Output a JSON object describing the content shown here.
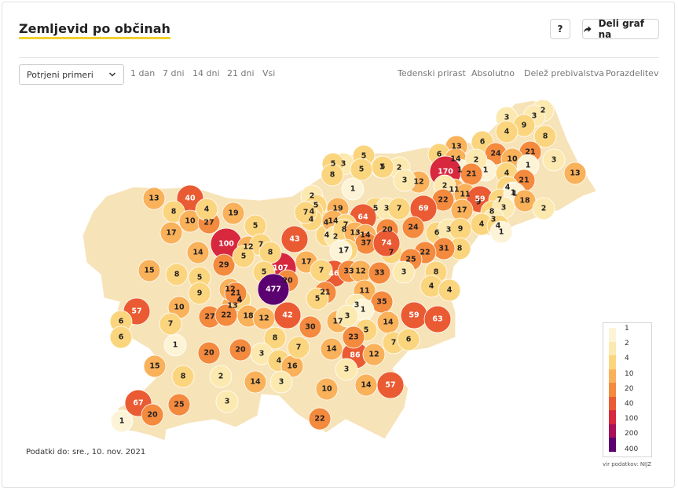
{
  "header": {
    "title": "Zemljevid po občinah",
    "help_label": "?",
    "share_label": "Deli graf na"
  },
  "controls": {
    "select_value": "Potrjeni primeri",
    "ranges": [
      {
        "label": "1 dan",
        "active": true
      },
      {
        "label": "7 dni",
        "active": false
      },
      {
        "label": "14 dni",
        "active": false
      },
      {
        "label": "21 dni",
        "active": false
      },
      {
        "label": "Vsi",
        "active": false
      }
    ],
    "views": [
      {
        "label": "Tedenski prirast",
        "active": false
      },
      {
        "label": "Absolutno",
        "active": true
      },
      {
        "label": "Delež prebivalstva",
        "active": false
      },
      {
        "label": "Porazdelitev",
        "active": false
      }
    ]
  },
  "map": {
    "municipality_values": [
      "2",
      "3",
      "3",
      "9",
      "4",
      "8",
      "6",
      "13",
      "24",
      "21",
      "10",
      "6",
      "14",
      "1",
      "1",
      "2",
      "170",
      "21",
      "4",
      "1",
      "5",
      "3",
      "1",
      "21",
      "11",
      "12",
      "2",
      "5",
      "3",
      "13",
      "5",
      "5",
      "2",
      "3",
      "4",
      "1",
      "8",
      "2",
      "22",
      "11",
      "9",
      "59",
      "7",
      "1",
      "18",
      "2",
      "40",
      "13",
      "8",
      "10",
      "27",
      "19",
      "4",
      "1",
      "5",
      "19",
      "3",
      "64",
      "69",
      "7",
      "17",
      "8",
      "3",
      "3",
      "4",
      "4",
      "1",
      "5",
      "17",
      "14",
      "100",
      "12",
      "5",
      "7",
      "4",
      "4",
      "14",
      "7",
      "2",
      "8",
      "13",
      "24",
      "6",
      "3",
      "9",
      "8",
      "4",
      "14",
      "4",
      "43",
      "37",
      "20",
      "7",
      "7",
      "1",
      "7",
      "74",
      "31",
      "22",
      "25",
      "8",
      "4",
      "4",
      "15",
      "8",
      "29",
      "107",
      "17",
      "46",
      "33",
      "12",
      "33",
      "5",
      "8",
      "7",
      "21",
      "5",
      "5",
      "20",
      "3",
      "477",
      "11",
      "35",
      "3",
      "1",
      "4",
      "13",
      "57",
      "6",
      "10",
      "5",
      "9",
      "12",
      "4",
      "21",
      "27",
      "22",
      "18",
      "12",
      "42",
      "30",
      "17",
      "3",
      "59",
      "63",
      "5",
      "14",
      "6",
      "1",
      "7",
      "8",
      "20",
      "20",
      "3",
      "4",
      "16",
      "7",
      "14",
      "86",
      "12",
      "7",
      "6",
      "23",
      "15",
      "8",
      "2",
      "14",
      "3",
      "3",
      "14",
      "57",
      "10",
      "25",
      "3",
      "67",
      "20",
      "1",
      "22"
    ],
    "legend": {
      "labels": [
        "1",
        "2",
        "4",
        "10",
        "20",
        "40",
        "100",
        "200",
        "400"
      ],
      "colors": [
        "#fdf4d8",
        "#fce9b0",
        "#fbd57e",
        "#f9b15a",
        "#f48a3d",
        "#ea5b33",
        "#d7283e",
        "#a8105a",
        "#5b0070"
      ]
    },
    "source": "vir podatkov: NIJZ"
  },
  "footer": {
    "note": "Podatki do: sre., 10. nov. 2021"
  }
}
